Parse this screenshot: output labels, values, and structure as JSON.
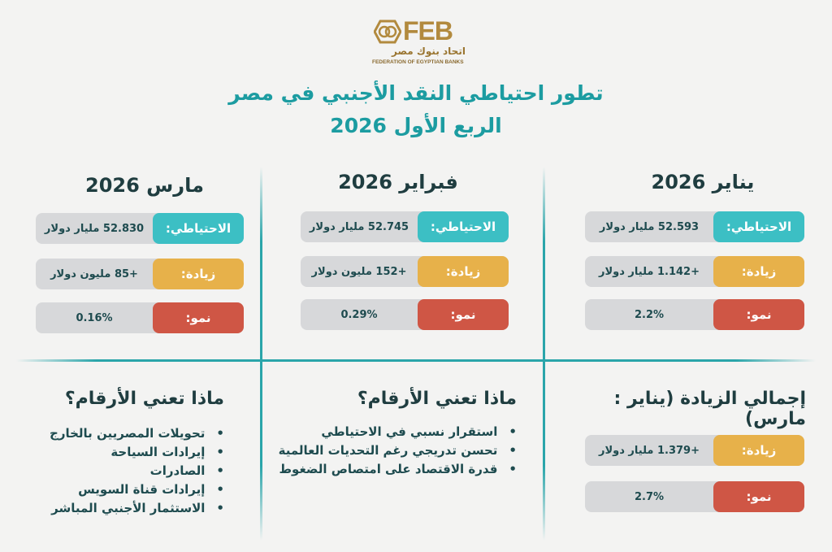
{
  "logo": {
    "brand": "FEB",
    "arabic": "اتحاد بنوك مصر",
    "english": "FEDERATION OF EGYPTIAN BANKS"
  },
  "title": {
    "line1": "تطور احتياطي النقد الأجنبي في مصر",
    "line2": "الربع الأول 2026"
  },
  "colors": {
    "reserve": "#3cbfc4",
    "increase": "#e7b14a",
    "growth": "#cf5645",
    "title": "#1c9ca1",
    "divider": "#2aa5aa"
  },
  "labels": {
    "reserve": "الاحتياطي:",
    "increase": "زيادة:",
    "growth": "نمو:"
  },
  "months": [
    {
      "name": "يناير 2026",
      "reserve": "52.593 مليار دولار",
      "increase": "+1.142 مليار دولار",
      "growth": "2.2%"
    },
    {
      "name": "فبراير 2026",
      "reserve": "52.745 مليار دولار",
      "increase": "+152 مليون دولار",
      "growth": "0.29%"
    },
    {
      "name": "مارس 2026",
      "reserve": "52.830 مليار دولار",
      "increase": "+85 مليون دولار",
      "growth": "0.16%"
    }
  ],
  "total": {
    "heading": "إجمالي الزيادة (يناير : مارس)",
    "increase": "+1.379 مليار دولار",
    "growth": "2.7%"
  },
  "meaning1": {
    "heading": "ماذا تعني الأرقام؟",
    "items": [
      "استقرار نسبي في الاحتياطي",
      "تحسن تدريجي رغم التحديات العالمية",
      "قدرة الاقتصاد على امتصاص الضغوط"
    ]
  },
  "meaning2": {
    "heading": "ماذا تعني الأرقام؟",
    "items": [
      "تحويلات المصريين بالخارج",
      "إيرادات السياحة",
      "الصادرات",
      "إيرادات قناة السويس",
      "الاستثمار الأجنبي المباشر"
    ]
  }
}
